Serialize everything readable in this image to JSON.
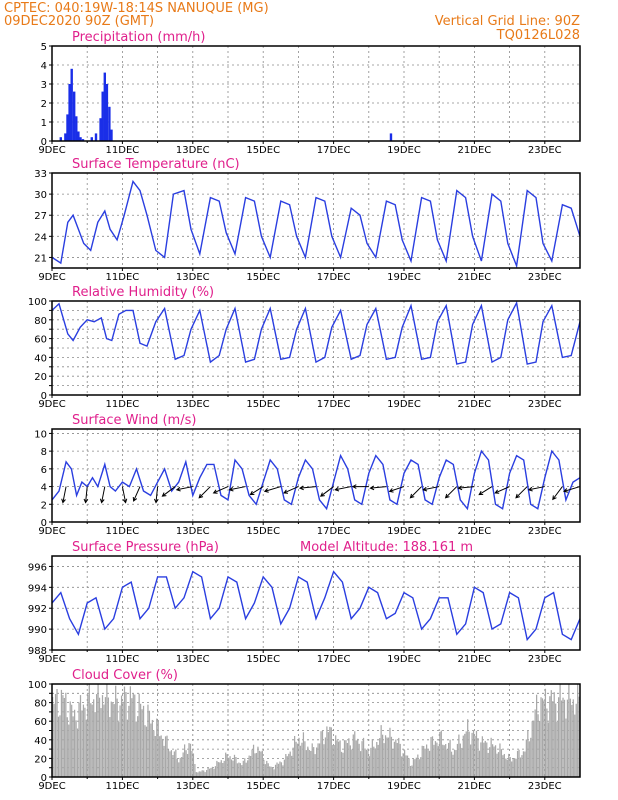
{
  "header": {
    "line1_left": "CPTEC:   040:19W-18:14S   NANUQUE (MG)",
    "line2_left": "09DEC2020 90Z (GMT)",
    "line2_right": "Vertical Grid Line: 90Z",
    "line3_right": "TQ0126L028"
  },
  "colors": {
    "header": "#e87a18",
    "titles": "#e0208c",
    "series": "#2a3ee0",
    "cloud": "#a8a8a8"
  },
  "chart_data": [
    {
      "type": "bar",
      "id": "precip",
      "title": "Precipitation (mm/h)",
      "ylim": [
        0,
        5
      ],
      "yticks": [
        0,
        1,
        2,
        3,
        4,
        5
      ],
      "xticklabels": [
        "9DEC",
        "11DEC",
        "13DEC",
        "15DEC",
        "17DEC",
        "19DEC",
        "21DEC",
        "23DEC"
      ],
      "xlim_days": [
        9,
        24
      ],
      "x": [
        9.25,
        9.38,
        9.44,
        9.5,
        9.56,
        9.63,
        9.69,
        9.75,
        9.81,
        9.88,
        10.13,
        10.25,
        10.38,
        10.44,
        10.5,
        10.56,
        10.63,
        10.69,
        18.63
      ],
      "values": [
        0.2,
        0.4,
        1.4,
        3.0,
        3.8,
        2.6,
        1.3,
        0.5,
        0.2,
        0.1,
        0.2,
        0.4,
        1.2,
        2.6,
        3.6,
        3.0,
        1.8,
        0.6,
        0.4
      ]
    },
    {
      "type": "line",
      "id": "temperature",
      "title": "Surface Temperature (nC)",
      "ylim": [
        19.5,
        33
      ],
      "yticks": [
        21,
        24,
        27,
        30,
        33
      ],
      "xticklabels": [
        "9DEC",
        "11DEC",
        "13DEC",
        "15DEC",
        "17DEC",
        "19DEC",
        "21DEC",
        "23DEC"
      ],
      "xlim_days": [
        9,
        24
      ],
      "x": [
        9.0,
        9.25,
        9.45,
        9.6,
        9.75,
        9.9,
        10.1,
        10.3,
        10.5,
        10.65,
        10.85,
        11.05,
        11.3,
        11.5,
        11.7,
        11.95,
        12.2,
        12.45,
        12.75,
        12.95,
        13.2,
        13.5,
        13.75,
        13.95,
        14.2,
        14.5,
        14.75,
        14.95,
        15.2,
        15.5,
        15.75,
        15.95,
        16.2,
        16.5,
        16.75,
        16.95,
        17.2,
        17.5,
        17.75,
        17.95,
        18.2,
        18.5,
        18.75,
        18.95,
        19.2,
        19.5,
        19.75,
        19.95,
        20.2,
        20.5,
        20.75,
        20.95,
        21.2,
        21.5,
        21.75,
        21.95,
        22.2,
        22.5,
        22.75,
        22.95,
        23.2,
        23.5,
        23.75,
        24.0
      ],
      "values": [
        21.0,
        20.2,
        26.0,
        27.0,
        25.0,
        23.0,
        22.0,
        26.0,
        27.6,
        25.0,
        23.5,
        27.0,
        31.8,
        30.5,
        27.0,
        22.0,
        21.0,
        30.0,
        30.5,
        25.0,
        21.5,
        29.5,
        29.0,
        24.5,
        21.5,
        29.5,
        29.0,
        24.0,
        21.0,
        29.0,
        28.5,
        24.0,
        21.0,
        29.5,
        29.0,
        24.0,
        21.0,
        28.0,
        27.0,
        23.0,
        21.0,
        29.0,
        28.5,
        23.5,
        20.5,
        29.5,
        29.0,
        23.5,
        20.5,
        30.5,
        29.5,
        24.0,
        20.5,
        30.0,
        29.0,
        23.0,
        19.8,
        30.5,
        29.5,
        23.0,
        20.5,
        28.5,
        28.0,
        24.0
      ]
    },
    {
      "type": "line",
      "id": "humidity",
      "title": "Relative Humidity (%)",
      "ylim": [
        0,
        100
      ],
      "yticks": [
        0,
        10,
        20,
        30,
        40,
        50,
        60,
        70,
        80,
        90,
        100
      ],
      "ytick_labels_shown": [
        0,
        20,
        40,
        60,
        80,
        100
      ],
      "xticklabels": [
        "9DEC",
        "11DEC",
        "13DEC",
        "15DEC",
        "17DEC",
        "19DEC",
        "21DEC",
        "23DEC"
      ],
      "xlim_days": [
        9,
        24
      ],
      "x": [
        9.0,
        9.2,
        9.45,
        9.6,
        9.8,
        10.0,
        10.2,
        10.4,
        10.55,
        10.7,
        10.9,
        11.1,
        11.3,
        11.5,
        11.7,
        11.95,
        12.2,
        12.5,
        12.75,
        12.95,
        13.2,
        13.5,
        13.75,
        13.95,
        14.2,
        14.5,
        14.75,
        14.95,
        15.2,
        15.5,
        15.75,
        15.95,
        16.2,
        16.5,
        16.75,
        16.95,
        17.2,
        17.5,
        17.75,
        17.95,
        18.2,
        18.5,
        18.75,
        18.95,
        19.2,
        19.5,
        19.75,
        19.95,
        20.2,
        20.5,
        20.75,
        20.95,
        21.2,
        21.5,
        21.75,
        21.95,
        22.2,
        22.5,
        22.75,
        22.95,
        23.2,
        23.5,
        23.75,
        24.0
      ],
      "values": [
        90,
        97,
        65,
        58,
        72,
        80,
        78,
        82,
        60,
        58,
        86,
        90,
        90,
        55,
        52,
        78,
        92,
        38,
        42,
        70,
        90,
        35,
        42,
        70,
        92,
        35,
        38,
        70,
        92,
        38,
        40,
        70,
        92,
        35,
        40,
        72,
        90,
        38,
        42,
        75,
        92,
        38,
        40,
        72,
        95,
        38,
        40,
        78,
        95,
        33,
        35,
        75,
        95,
        35,
        40,
        80,
        98,
        33,
        35,
        78,
        95,
        40,
        42,
        78
      ]
    },
    {
      "type": "line",
      "id": "wind",
      "title": "Surface Wind (m/s)",
      "ylim": [
        0,
        10.5
      ],
      "yticks": [
        0,
        2,
        4,
        6,
        8,
        10
      ],
      "xticklabels": [
        "9DEC",
        "11DEC",
        "13DEC",
        "15DEC",
        "17DEC",
        "19DEC",
        "21DEC",
        "23DEC"
      ],
      "xlim_days": [
        9,
        24
      ],
      "x": [
        9.0,
        9.2,
        9.4,
        9.55,
        9.7,
        9.85,
        10.0,
        10.15,
        10.3,
        10.5,
        10.65,
        10.8,
        11.0,
        11.2,
        11.4,
        11.6,
        11.8,
        12.0,
        12.2,
        12.4,
        12.6,
        12.8,
        13.0,
        13.2,
        13.4,
        13.6,
        13.8,
        14.0,
        14.2,
        14.4,
        14.6,
        14.8,
        15.0,
        15.2,
        15.4,
        15.6,
        15.8,
        16.0,
        16.2,
        16.4,
        16.6,
        16.8,
        17.0,
        17.2,
        17.4,
        17.6,
        17.8,
        18.0,
        18.2,
        18.4,
        18.6,
        18.8,
        19.0,
        19.2,
        19.4,
        19.6,
        19.8,
        20.0,
        20.2,
        20.4,
        20.6,
        20.8,
        21.0,
        21.2,
        21.4,
        21.6,
        21.8,
        22.0,
        22.2,
        22.4,
        22.6,
        22.8,
        23.0,
        23.2,
        23.4,
        23.6,
        23.8,
        24.0
      ],
      "values": [
        2.5,
        3.5,
        6.8,
        6.0,
        3.0,
        4.5,
        4.0,
        5.0,
        4.0,
        6.5,
        4.0,
        3.5,
        4.5,
        4.0,
        6.0,
        3.5,
        3.0,
        4.5,
        6.0,
        3.5,
        4.5,
        6.8,
        3.0,
        5.0,
        6.5,
        6.5,
        3.0,
        2.5,
        7.0,
        6.0,
        3.0,
        2.0,
        4.5,
        7.0,
        6.0,
        2.5,
        2.0,
        5.0,
        7.0,
        6.0,
        2.5,
        1.5,
        4.5,
        7.5,
        6.0,
        2.5,
        2.0,
        5.5,
        7.5,
        6.5,
        2.5,
        2.0,
        5.5,
        7.0,
        6.5,
        2.5,
        2.0,
        5.0,
        7.0,
        6.5,
        2.5,
        1.5,
        5.5,
        8.0,
        7.0,
        2.0,
        1.5,
        5.5,
        7.5,
        7.0,
        2.0,
        1.5,
        5.0,
        8.0,
        7.0,
        2.5,
        4.5,
        5.0
      ],
      "vectors": [
        {
          "x": 9.4,
          "y": 4.0,
          "u": -0.2,
          "v": -1.0
        },
        {
          "x": 10.0,
          "y": 4.0,
          "u": -0.1,
          "v": -1.0
        },
        {
          "x": 10.5,
          "y": 4.0,
          "u": -0.2,
          "v": -1.0
        },
        {
          "x": 11.0,
          "y": 4.0,
          "u": 0.2,
          "v": -1.0
        },
        {
          "x": 11.5,
          "y": 4.0,
          "u": -0.4,
          "v": -0.9
        },
        {
          "x": 12.0,
          "y": 4.0,
          "u": -0.1,
          "v": -1.0
        },
        {
          "x": 12.5,
          "y": 4.0,
          "u": -0.8,
          "v": -0.6
        },
        {
          "x": 13.0,
          "y": 4.0,
          "u": -1.0,
          "v": -0.2
        },
        {
          "x": 13.5,
          "y": 4.0,
          "u": -0.7,
          "v": -0.7
        },
        {
          "x": 14.0,
          "y": 4.0,
          "u": -0.9,
          "v": -0.4
        },
        {
          "x": 14.5,
          "y": 4.0,
          "u": -1.0,
          "v": -0.2
        },
        {
          "x": 15.0,
          "y": 4.0,
          "u": -0.8,
          "v": -0.5
        },
        {
          "x": 15.5,
          "y": 4.0,
          "u": -1.0,
          "v": -0.3
        },
        {
          "x": 16.0,
          "y": 4.0,
          "u": -0.9,
          "v": -0.4
        },
        {
          "x": 16.5,
          "y": 4.0,
          "u": -1.0,
          "v": -0.1
        },
        {
          "x": 17.0,
          "y": 4.0,
          "u": -0.8,
          "v": -0.6
        },
        {
          "x": 17.5,
          "y": 4.0,
          "u": -1.0,
          "v": -0.2
        },
        {
          "x": 18.0,
          "y": 4.0,
          "u": -1.0,
          "v": 0.0
        },
        {
          "x": 18.5,
          "y": 4.0,
          "u": -1.0,
          "v": -0.1
        },
        {
          "x": 19.0,
          "y": 4.0,
          "u": -0.9,
          "v": -0.3
        },
        {
          "x": 19.5,
          "y": 4.0,
          "u": -0.7,
          "v": -0.7
        },
        {
          "x": 20.0,
          "y": 4.0,
          "u": -1.0,
          "v": -0.2
        },
        {
          "x": 20.5,
          "y": 4.0,
          "u": -0.7,
          "v": -0.7
        },
        {
          "x": 21.0,
          "y": 4.0,
          "u": -1.0,
          "v": -0.1
        },
        {
          "x": 21.5,
          "y": 4.0,
          "u": -0.8,
          "v": -0.5
        },
        {
          "x": 22.0,
          "y": 4.0,
          "u": -0.9,
          "v": -0.4
        },
        {
          "x": 22.5,
          "y": 4.0,
          "u": -0.7,
          "v": -0.7
        },
        {
          "x": 23.0,
          "y": 4.0,
          "u": -1.0,
          "v": -0.2
        },
        {
          "x": 23.5,
          "y": 4.0,
          "u": -0.6,
          "v": -0.8
        },
        {
          "x": 24.0,
          "y": 4.0,
          "u": -1.0,
          "v": -0.3
        }
      ]
    },
    {
      "type": "line",
      "id": "pressure",
      "title": "Surface Pressure (hPa)",
      "annotation": "Model Altitude: 188.161 m",
      "ylim": [
        988,
        997
      ],
      "yticks": [
        988,
        990,
        992,
        994,
        996
      ],
      "xticklabels": [
        "9DEC",
        "11DEC",
        "13DEC",
        "15DEC",
        "17DEC",
        "19DEC",
        "21DEC",
        "23DEC"
      ],
      "xlim_days": [
        9,
        24
      ],
      "x": [
        9.0,
        9.25,
        9.5,
        9.75,
        10.0,
        10.25,
        10.5,
        10.75,
        11.0,
        11.25,
        11.5,
        11.75,
        12.0,
        12.25,
        12.5,
        12.75,
        13.0,
        13.25,
        13.5,
        13.75,
        14.0,
        14.25,
        14.5,
        14.75,
        15.0,
        15.25,
        15.5,
        15.75,
        16.0,
        16.25,
        16.5,
        16.75,
        17.0,
        17.25,
        17.5,
        17.75,
        18.0,
        18.25,
        18.5,
        18.75,
        19.0,
        19.25,
        19.5,
        19.75,
        20.0,
        20.25,
        20.5,
        20.75,
        21.0,
        21.25,
        21.5,
        21.75,
        22.0,
        22.25,
        22.5,
        22.75,
        23.0,
        23.25,
        23.5,
        23.75,
        24.0
      ],
      "values": [
        992.5,
        993.5,
        991.0,
        989.5,
        992.5,
        993.0,
        990.0,
        991.0,
        994.0,
        994.5,
        991.0,
        992.0,
        995.0,
        995.0,
        992.0,
        993.0,
        995.5,
        995.0,
        991.0,
        992.0,
        995.0,
        994.5,
        991.0,
        992.5,
        995.0,
        994.0,
        990.5,
        992.0,
        995.0,
        994.5,
        991.0,
        993.0,
        995.5,
        994.5,
        991.0,
        992.0,
        994.0,
        993.5,
        991.0,
        991.5,
        993.5,
        993.0,
        990.0,
        991.0,
        993.0,
        993.0,
        989.5,
        990.5,
        994.0,
        993.5,
        990.0,
        990.5,
        993.5,
        993.0,
        989.0,
        990.0,
        993.0,
        993.5,
        989.5,
        989.0,
        991.0
      ]
    },
    {
      "type": "bar",
      "id": "cloud",
      "title": "Cloud Cover (%)",
      "ylim": [
        0,
        100
      ],
      "yticks": [
        0,
        10,
        20,
        30,
        40,
        50,
        60,
        70,
        80,
        90,
        100
      ],
      "ytick_labels_shown": [
        0,
        20,
        40,
        60,
        80,
        100
      ],
      "xticklabels": [
        "9DEC",
        "11DEC",
        "13DEC",
        "15DEC",
        "17DEC",
        "19DEC",
        "21DEC",
        "23DEC"
      ],
      "xlim_days": [
        9,
        24
      ],
      "profile": [
        [
          9.0,
          85
        ],
        [
          9.3,
          90
        ],
        [
          9.6,
          70
        ],
        [
          10.0,
          88
        ],
        [
          10.4,
          95
        ],
        [
          10.8,
          85
        ],
        [
          11.2,
          92
        ],
        [
          11.6,
          75
        ],
        [
          12.0,
          55
        ],
        [
          12.3,
          35
        ],
        [
          12.6,
          20
        ],
        [
          12.9,
          40
        ],
        [
          13.1,
          5
        ],
        [
          13.5,
          10
        ],
        [
          14.0,
          25
        ],
        [
          14.4,
          15
        ],
        [
          14.8,
          35
        ],
        [
          15.2,
          10
        ],
        [
          15.6,
          20
        ],
        [
          16.0,
          45
        ],
        [
          16.4,
          30
        ],
        [
          16.8,
          55
        ],
        [
          17.2,
          35
        ],
        [
          17.6,
          45
        ],
        [
          18.0,
          30
        ],
        [
          18.4,
          50
        ],
        [
          18.8,
          40
        ],
        [
          19.2,
          15
        ],
        [
          19.6,
          35
        ],
        [
          20.0,
          45
        ],
        [
          20.4,
          30
        ],
        [
          20.8,
          55
        ],
        [
          21.2,
          40
        ],
        [
          21.6,
          35
        ],
        [
          22.0,
          20
        ],
        [
          22.4,
          30
        ],
        [
          22.8,
          85
        ],
        [
          23.2,
          88
        ],
        [
          23.6,
          90
        ],
        [
          24.0,
          88
        ]
      ]
    }
  ]
}
